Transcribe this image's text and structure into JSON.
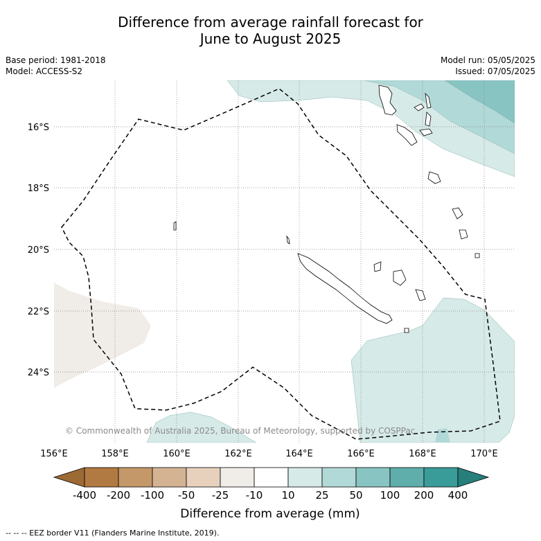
{
  "title": {
    "line1": "Difference from average rainfall forecast for",
    "line2": "June to August 2025"
  },
  "meta_left": {
    "base_period": "Base period: 1981-2018",
    "model": "Model: ACCESS-S2"
  },
  "meta_right": {
    "model_run": "Model run: 05/05/2025",
    "issued": "Issued: 07/05/2025"
  },
  "map": {
    "lon_range": [
      156,
      171
    ],
    "lat_range": [
      -26,
      -14.6
    ],
    "lon_ticks": [
      "156°E",
      "158°E",
      "160°E",
      "162°E",
      "164°E",
      "166°E",
      "168°E",
      "170°E"
    ],
    "lat_ticks": [
      "16°S",
      "18°S",
      "20°S",
      "22°S",
      "24°S"
    ],
    "grid": true,
    "copyright": "© Commonwealth of Australia 2025, Bureau of Meteorology, supported by COSPPac"
  },
  "colorbar": {
    "label": "Difference from average (mm)",
    "tick_labels": [
      "-400",
      "-200",
      "-100",
      "-50",
      "-25",
      "-10",
      "10",
      "25",
      "50",
      "100",
      "200",
      "400"
    ],
    "colors": [
      "#9c6a35",
      "#b17a42",
      "#c59869",
      "#d4b393",
      "#e7d1bd",
      "#f0ece8",
      "#ffffff",
      "#d6eae8",
      "#b1d9d7",
      "#88c4c2",
      "#5faeac",
      "#3a9c98",
      "#267f7b"
    ]
  },
  "footnote": "--  --  -- EEZ border V11 (Flanders Marine Institute, 2019)."
}
